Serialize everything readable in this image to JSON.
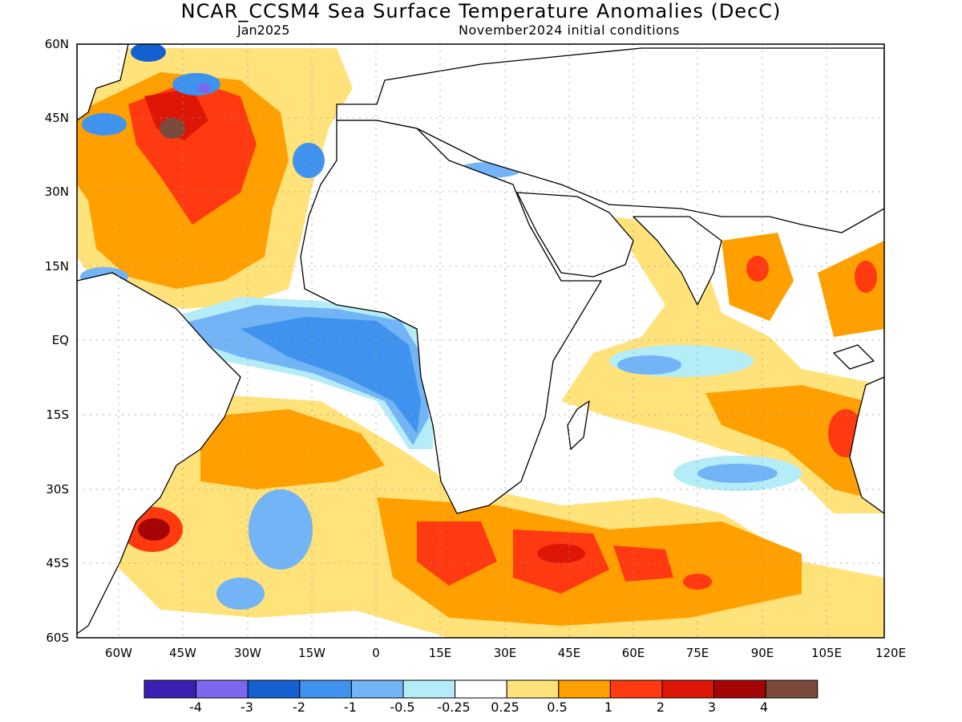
{
  "title": "NCAR_CCSM4 Sea Surface Temperature Anomalies (DecC)",
  "subtitle_left": "Jan2025",
  "subtitle_right": "November2024 initial conditions",
  "lat_labels": [
    "60N",
    "45N",
    "30N",
    "15N",
    "EQ",
    "15S",
    "30S",
    "45S",
    "60S"
  ],
  "lon_labels": [
    "60W",
    "45W",
    "30W",
    "15W",
    "0",
    "15E",
    "30E",
    "45E",
    "60E",
    "75E",
    "90E",
    "105E",
    "120E"
  ],
  "colorbar": {
    "colors": [
      "#3a1fb0",
      "#7b68ee",
      "#1560d0",
      "#3f93ee",
      "#72b4f5",
      "#b4ecf7",
      "#ffffff",
      "#ffe27a",
      "#ffa000",
      "#ff3a10",
      "#de1606",
      "#a60505",
      "#7b4a3c"
    ],
    "labels": [
      "-4",
      "-3",
      "-2",
      "-1",
      "-0.5",
      "-0.25",
      "0.25",
      "0.5",
      "1",
      "2",
      "3",
      "4"
    ]
  }
}
